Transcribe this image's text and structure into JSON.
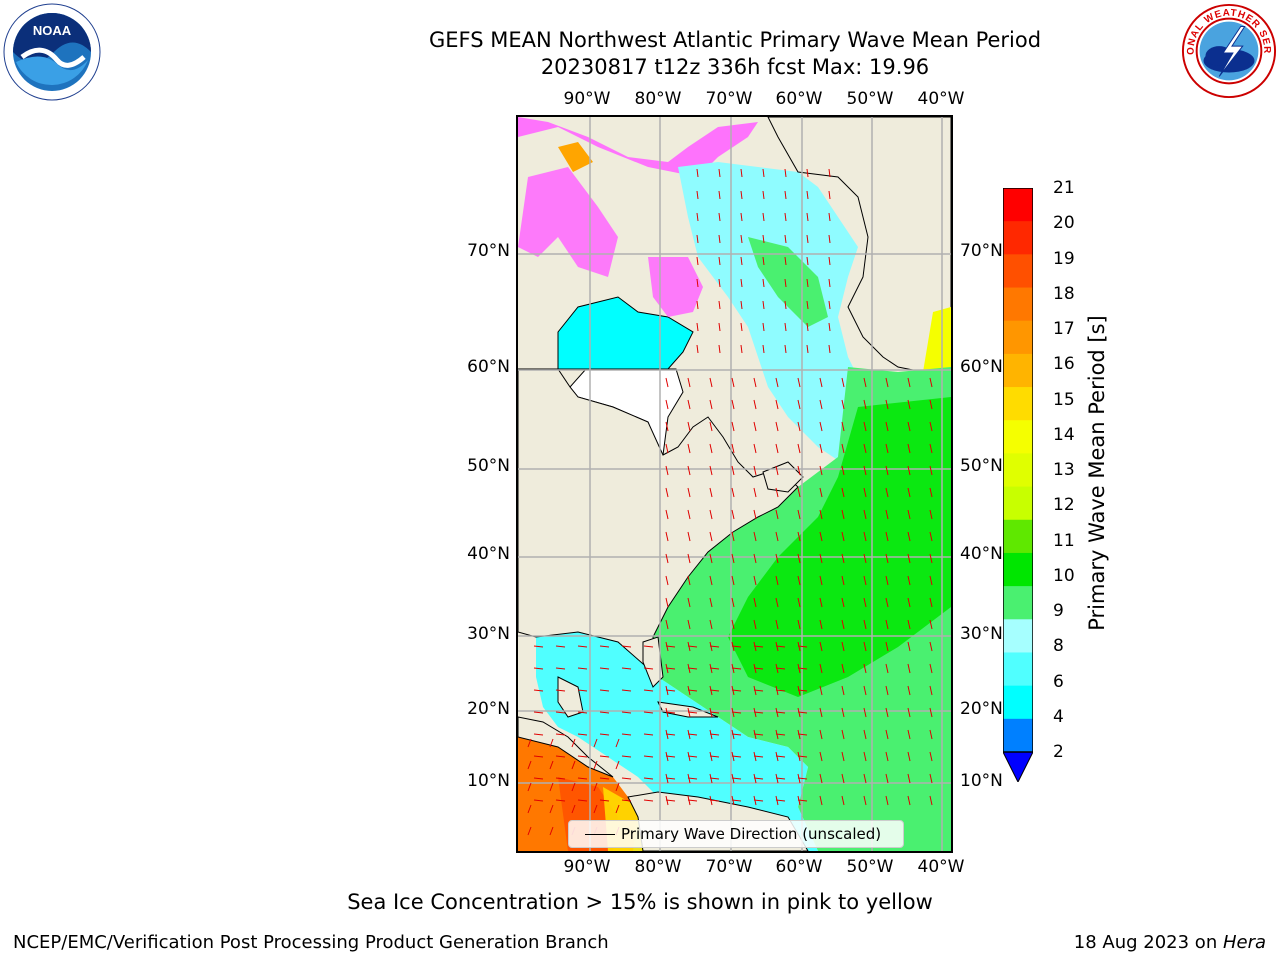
{
  "title": {
    "line1": "GEFS MEAN Northwest Atlantic Primary Wave Mean Period",
    "line2": "20230817 t12z 336h fcst   Max: 19.96"
  },
  "logos": {
    "left": "noaa-logo",
    "left_text": "NOAA",
    "left_ring_text": "NATIONAL OCEANIC AND ATMOSPHERIC ADMINISTRATION · U.S. DEPARTMENT OF COMMERCE",
    "right": "national-weather-service-logo",
    "right_ring_text": "NATIONAL WEATHER SERVICE"
  },
  "axes": {
    "lon_top": [
      "90°W",
      "80°W",
      "70°W",
      "60°W",
      "50°W",
      "40°W"
    ],
    "lon_bottom": [
      "90°W",
      "80°W",
      "70°W",
      "60°W",
      "50°W",
      "40°W"
    ],
    "lat_left": [
      "70°N",
      "60°N",
      "50°N",
      "40°N",
      "30°N",
      "20°N",
      "10°N"
    ],
    "lat_right": [
      "70°N",
      "60°N",
      "50°N",
      "40°N",
      "30°N",
      "20°N",
      "10°N"
    ]
  },
  "map": {
    "legend": "Primary Wave Direction (unscaled)",
    "land_color": "#efecdc",
    "arrow_color": "#e00000"
  },
  "colorbar": {
    "label": "Primary Wave Mean Period [s]",
    "ticks": [
      "21",
      "20",
      "19",
      "18",
      "17",
      "16",
      "15",
      "14",
      "13",
      "12",
      "11",
      "10",
      "9",
      "8",
      "6",
      "4",
      "2"
    ],
    "colors_top_to_bottom": [
      "#ff0000",
      "#ff2800",
      "#ff5000",
      "#ff7800",
      "#ff9600",
      "#ffb400",
      "#ffdc00",
      "#f5ff00",
      "#e0ff00",
      "#c8ff00",
      "#5fe800",
      "#00e600",
      "#4af070",
      "#a6ffff",
      "#50ffff",
      "#00ffff",
      "#0080ff"
    ],
    "extend_color": "#0000ff"
  },
  "note": "Sea Ice Concentration > 15% is shown in pink to yellow",
  "footer": {
    "left": "NCEP/EMC/Verification Post Processing Product Generation Branch",
    "date": "18 Aug 2023 on ",
    "machine": "Hera"
  }
}
